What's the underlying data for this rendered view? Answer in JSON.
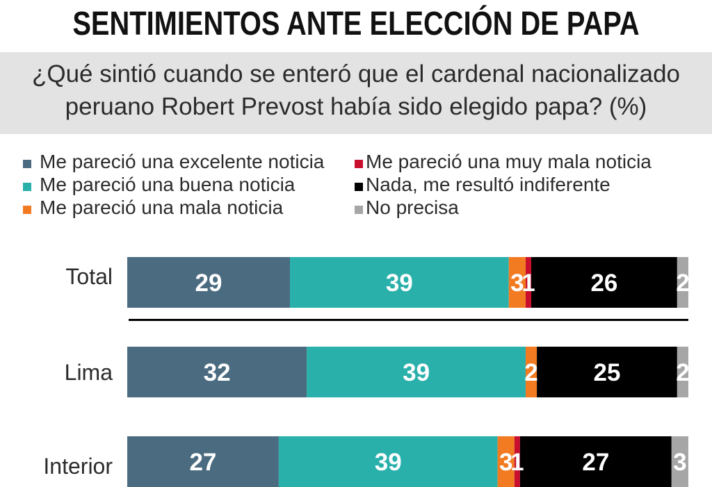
{
  "chart_data": {
    "type": "bar",
    "orientation": "horizontal",
    "stacked": true,
    "title": "SENTIMIENTOS ANTE ELECCIÓN DE PAPA",
    "subtitle_lines": [
      "¿Qué sintió cuando se enteró que el cardenal nacionalizado",
      "peruano Robert Prevost había sido elegido papa? (%)"
    ],
    "categories": [
      "Total",
      "Lima",
      "Interior"
    ],
    "series": [
      {
        "name": "Me pareció una excelente noticia",
        "color": "#4b6b80",
        "values": [
          29,
          32,
          27
        ]
      },
      {
        "name": "Me pareció una buena noticia",
        "color": "#29b0ab",
        "values": [
          39,
          39,
          39
        ]
      },
      {
        "name": "Me pareció una mala noticia",
        "color": "#f27b22",
        "values": [
          3,
          2,
          3
        ]
      },
      {
        "name": "Me pareció una muy mala noticia",
        "color": "#c8102e",
        "values": [
          1,
          null,
          1
        ]
      },
      {
        "name": "Nada, me resultó indiferente",
        "color": "#000000",
        "values": [
          26,
          25,
          27
        ]
      },
      {
        "name": "No precisa",
        "color": "#a6a6a6",
        "values": [
          2,
          2,
          3
        ]
      }
    ],
    "xlim": [
      0,
      100
    ],
    "legend_position": "top",
    "grid": false
  }
}
